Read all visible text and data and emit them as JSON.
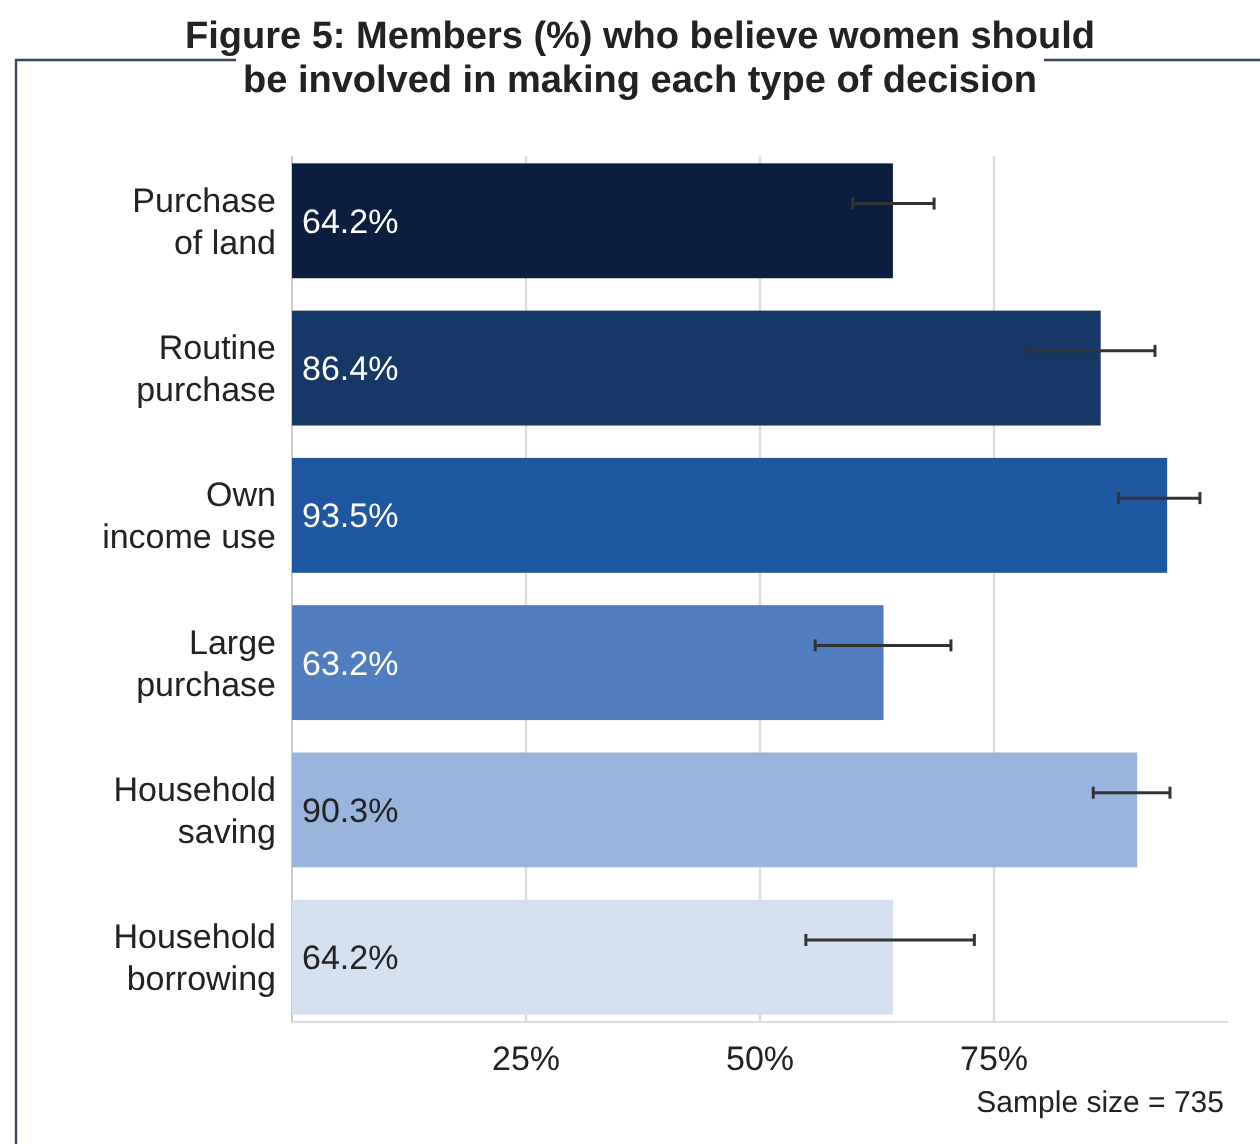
{
  "chart_data": {
    "type": "bar",
    "orientation": "horizontal",
    "title": "Figure 5: Members (%) who believe women should\nbe involved in making each type of decision",
    "categories": [
      "Purchase\nof land",
      "Routine\npurchase",
      "Own\nincome use",
      "Large\npurchase",
      "Household\nsaving",
      "Household\nborrowing"
    ],
    "values": [
      64.2,
      86.4,
      93.5,
      63.2,
      90.3,
      64.2
    ],
    "colors": [
      "#0b1e40",
      "#163866",
      "#1f56a0",
      "#507dc0",
      "#9ab5dd",
      "#d5e0f1"
    ],
    "errors": [
      [
        59.9,
        68.6
      ],
      [
        78.7,
        92.2
      ],
      [
        88.3,
        97.0
      ],
      [
        55.9,
        70.4
      ],
      [
        85.6,
        93.8
      ],
      [
        54.9,
        72.9
      ]
    ],
    "value_labels": [
      "64.2%",
      "86.4%",
      "93.5%",
      "63.2%",
      "90.3%",
      "64.2%"
    ],
    "xlim": [
      0,
      100
    ],
    "xticks": [
      {
        "value": 25,
        "label": "25%"
      },
      {
        "value": 50,
        "label": "50%"
      },
      {
        "value": 75,
        "label": "75%"
      }
    ],
    "grid": "x",
    "annotations": [
      "Sample size = 735"
    ]
  }
}
